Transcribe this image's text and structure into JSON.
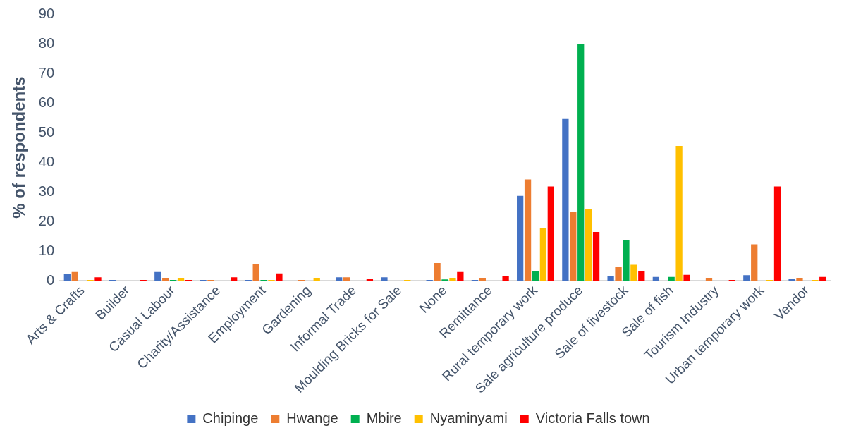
{
  "chart_data": {
    "type": "bar",
    "ylabel": "% of respondents",
    "categories": [
      "Arts & Crafts",
      "Builder",
      "Casual Labour",
      "Charity/Assistance",
      "Employment",
      "Gardening",
      "Informal Trade",
      "Moulding Bricks for Sale",
      "None",
      "Remittance",
      "Rural temporary work",
      "Sale agriculture produce",
      "Sale of livestock",
      "Sale of fish",
      "Tourism Industry",
      "Urban temporary work",
      "Vendor"
    ],
    "series": [
      {
        "name": "Chipinge",
        "color": "#4472c4",
        "values": [
          2.2,
          0.3,
          3,
          0.3,
          0.3,
          0,
          1.2,
          1.2,
          0.3,
          0.3,
          28.7,
          54.6,
          1.6,
          1.3,
          0,
          1.9,
          0.6
        ]
      },
      {
        "name": "Hwange",
        "color": "#ed7d31",
        "values": [
          3,
          0,
          1,
          0.3,
          5.7,
          0.3,
          1.2,
          0,
          6,
          1,
          34.2,
          23.4,
          4.7,
          0,
          1,
          12.3,
          1
        ]
      },
      {
        "name": "Mbire",
        "color": "#00b050",
        "values": [
          0,
          0,
          0.3,
          0,
          0.3,
          0,
          0,
          0,
          0.5,
          0,
          3.2,
          79.8,
          13.8,
          1.3,
          0,
          0,
          0
        ]
      },
      {
        "name": "Nyaminyami",
        "color": "#ffc000",
        "values": [
          0.3,
          0,
          1,
          0,
          0.3,
          1,
          0,
          0.3,
          1,
          0,
          17.7,
          24.3,
          5.4,
          45.5,
          0,
          0.3,
          0.3
        ]
      },
      {
        "name": "Victoria Falls town",
        "color": "#ff0000",
        "values": [
          1.2,
          0.3,
          0.3,
          1.2,
          2.5,
          0,
          0.6,
          0,
          3,
          1.5,
          31.8,
          16.5,
          3.4,
          2,
          0.3,
          31.8,
          1.3
        ]
      }
    ],
    "ylim": [
      0,
      90
    ],
    "yticks": [
      0,
      10,
      20,
      30,
      40,
      50,
      60,
      70,
      80,
      90
    ],
    "grid": false,
    "legend": "bottom"
  }
}
